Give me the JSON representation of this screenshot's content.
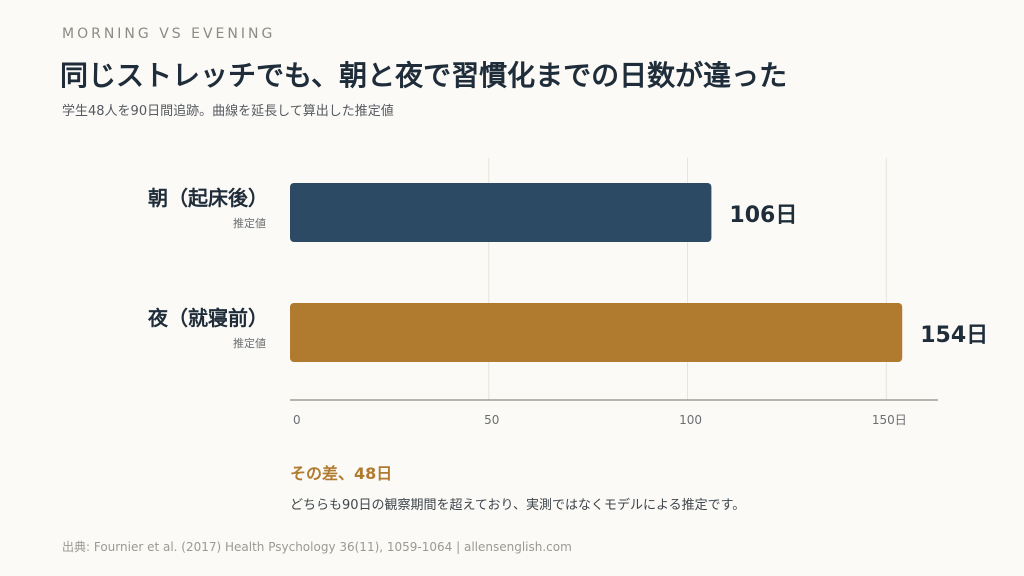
{
  "header": {
    "eyebrow": "MORNING VS EVENING",
    "title": "同じストレッチでも、朝と夜で習慣化までの日数が違った",
    "subtitle": "学生48人を90日間追跡。曲線を延長して算出した推定値"
  },
  "chart_data": {
    "type": "bar",
    "orientation": "horizontal",
    "categories": [
      "朝（起床後）",
      "夜（就寝前）"
    ],
    "category_notes": [
      "推定値",
      "推定値"
    ],
    "values": [
      106,
      154
    ],
    "value_labels": [
      "106日",
      "154日"
    ],
    "colors": [
      "#2c4a63",
      "#b07a2f"
    ],
    "xlim": [
      0,
      163
    ],
    "xticks": [
      0,
      50,
      100,
      150
    ],
    "xtick_labels": [
      "0",
      "50",
      "100",
      "150日"
    ],
    "grid": true
  },
  "annotation": {
    "title": "その差、48日",
    "note": "どちらも90日の観察期間を超えており、実測ではなくモデルによる推定です。"
  },
  "source": "出典: Fournier et al. (2017) Health Psychology 36(11), 1059-1064 | allensenglish.com"
}
